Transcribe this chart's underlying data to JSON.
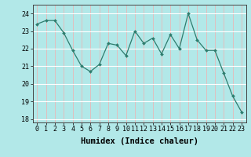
{
  "x": [
    0,
    1,
    2,
    3,
    4,
    5,
    6,
    7,
    8,
    9,
    10,
    11,
    12,
    13,
    14,
    15,
    16,
    17,
    18,
    19,
    20,
    21,
    22,
    23
  ],
  "y": [
    23.4,
    23.6,
    23.6,
    22.9,
    21.9,
    21.0,
    20.7,
    21.1,
    22.3,
    22.2,
    21.6,
    23.0,
    22.3,
    22.6,
    21.7,
    22.8,
    22.0,
    24.0,
    22.5,
    21.9,
    21.9,
    20.6,
    19.3,
    18.4
  ],
  "line_color": "#2e7d6e",
  "marker_color": "#2e7d6e",
  "bg_color": "#b2e8e8",
  "grid_h_color": "#ffffff",
  "grid_v_color": "#e8b8b8",
  "xlabel": "Humidex (Indice chaleur)",
  "ylim": [
    17.8,
    24.5
  ],
  "xlim": [
    -0.5,
    23.5
  ],
  "yticks": [
    18,
    19,
    20,
    21,
    22,
    23,
    24
  ],
  "xticks": [
    0,
    1,
    2,
    3,
    4,
    5,
    6,
    7,
    8,
    9,
    10,
    11,
    12,
    13,
    14,
    15,
    16,
    17,
    18,
    19,
    20,
    21,
    22,
    23
  ],
  "tick_fontsize": 6,
  "label_fontsize": 7.5
}
